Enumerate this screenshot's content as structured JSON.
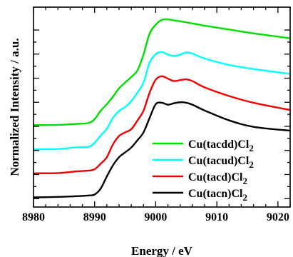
{
  "chart_data": {
    "type": "line",
    "title": "",
    "xlabel": "Energy / eV",
    "ylabel": "Normalized Intensity / a.u.",
    "xlim": [
      8980,
      9022
    ],
    "xticks": [
      8980,
      8990,
      9000,
      9010,
      9020
    ],
    "x_tick_labels": [
      "8980",
      "8990",
      "9000",
      "9010",
      "9020"
    ],
    "y_tick_labels_shown": false,
    "grid": false,
    "legend_position": "bottom-right",
    "legend": [
      {
        "name": "Cu(tacdd)Cl",
        "subscript": "2",
        "color": "#00dd00"
      },
      {
        "name": "Cu(tacud)Cl",
        "subscript": "2",
        "color": "#00ffff"
      },
      {
        "name": "Cu(tacd)Cl",
        "subscript": "2",
        "color": "#ee0000"
      },
      {
        "name": "Cu(tacn)Cl",
        "subscript": "2",
        "color": "#000000"
      }
    ],
    "series": [
      {
        "name": "Cu(tacdd)Cl2",
        "color": "#00dd00",
        "x": [
          8980,
          8984,
          8987,
          8989,
          8990,
          8991,
          8992,
          8993,
          8994,
          8995,
          8996,
          8997,
          8998,
          8999,
          9000,
          9001,
          9002,
          9003,
          9005,
          9008,
          9012,
          9016,
          9022
        ],
        "y": [
          3.05,
          3.06,
          3.1,
          3.14,
          3.3,
          3.65,
          3.92,
          4.23,
          4.58,
          4.82,
          5.05,
          5.32,
          5.98,
          6.85,
          7.22,
          7.42,
          7.44,
          7.4,
          7.32,
          7.18,
          7.02,
          6.86,
          6.66
        ]
      },
      {
        "name": "Cu(tacud)Cl2",
        "color": "#00ffff",
        "x": [
          8980,
          8984,
          8987,
          8989,
          8990,
          8991,
          8992,
          8993,
          8994,
          8995,
          8996,
          8997,
          8998,
          8999,
          9000,
          9001,
          9002,
          9003,
          9004,
          9005,
          9006,
          9008,
          9012,
          9016,
          9022
        ],
        "y": [
          2.05,
          2.06,
          2.13,
          2.15,
          2.32,
          2.62,
          2.9,
          3.35,
          3.64,
          3.8,
          4.05,
          4.4,
          4.82,
          5.65,
          6.0,
          6.08,
          5.98,
          5.92,
          5.98,
          6.07,
          6.02,
          5.82,
          5.55,
          5.38,
          5.18
        ]
      },
      {
        "name": "Cu(tacd)Cl2",
        "color": "#ee0000",
        "x": [
          8980,
          8984,
          8987,
          8989,
          8990,
          8991,
          8992,
          8993,
          8994,
          8995,
          8996,
          8997,
          8998,
          8999,
          9000,
          9001,
          9002,
          9003,
          9004,
          9005,
          9006,
          9008,
          9012,
          9016,
          9022
        ],
        "y": [
          1.05,
          1.06,
          1.13,
          1.16,
          1.22,
          1.45,
          1.72,
          2.25,
          2.6,
          2.75,
          2.88,
          3.24,
          3.65,
          4.4,
          4.94,
          5.08,
          4.98,
          4.88,
          4.92,
          4.95,
          4.88,
          4.62,
          4.26,
          3.98,
          3.68
        ]
      },
      {
        "name": "Cu(tacn)Cl2",
        "color": "#000000",
        "x": [
          8980,
          8984,
          8987,
          8989,
          8990,
          8991,
          8992,
          8993,
          8994,
          8995,
          8996,
          8997,
          8998,
          8999,
          9000,
          9001,
          9002,
          9003,
          9004,
          9005,
          9006,
          9008,
          9012,
          9016,
          9022
        ],
        "y": [
          0.05,
          0.07,
          0.1,
          0.13,
          0.17,
          0.42,
          0.92,
          1.38,
          1.72,
          1.92,
          2.12,
          2.42,
          2.75,
          3.35,
          3.92,
          3.98,
          3.9,
          3.96,
          4.0,
          3.98,
          3.9,
          3.66,
          3.25,
          2.98,
          2.82
        ]
      }
    ]
  }
}
